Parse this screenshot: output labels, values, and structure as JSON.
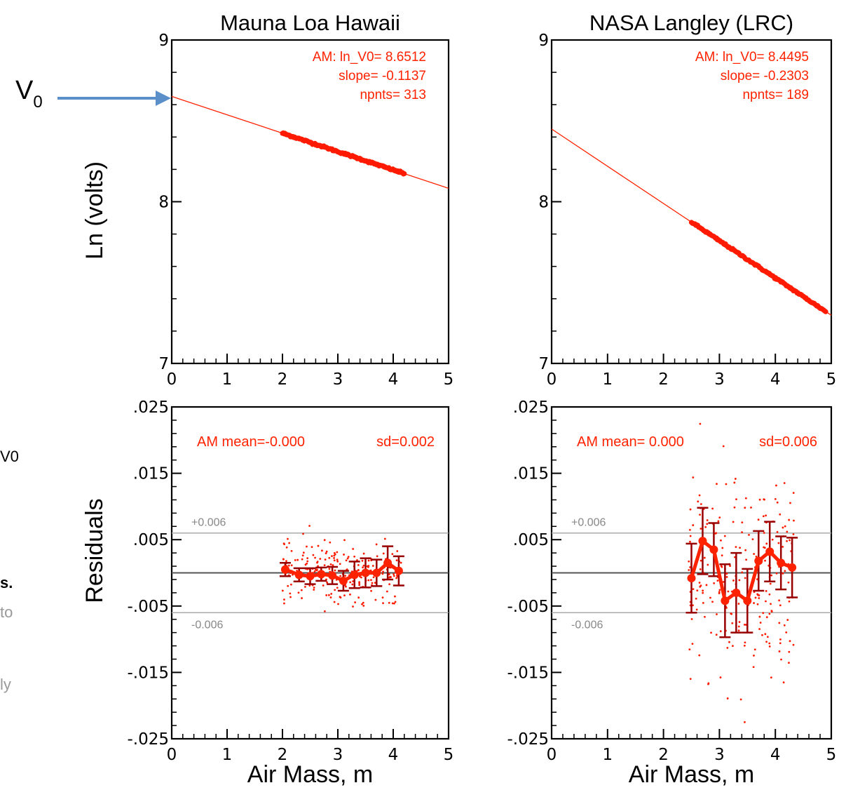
{
  "colors": {
    "fit": "#ff2200",
    "points": "#ff1a00",
    "errorbars": "#990000",
    "band": "#aaaaaa",
    "arrow": "#5b8fc9",
    "faded_text": "#999999"
  },
  "left_edge": {
    "v0_label": "V",
    "v0_subscript": "0",
    "fragments": [
      {
        "text": "V0",
        "color": "#000000",
        "bold": false
      },
      {
        "text": "s.",
        "color": "#000000",
        "bold": true
      },
      {
        "text": "to",
        "color": "#999999",
        "bold": false
      },
      {
        "text": "ly",
        "color": "#999999",
        "bold": false
      }
    ]
  },
  "chart_data": [
    {
      "type": "line",
      "title": "Mauna Loa Hawaii",
      "xlabel": "",
      "ylabel": "Ln (volts)",
      "xlim": [
        0,
        5
      ],
      "ylim": [
        7,
        9
      ],
      "x_ticks": [
        "0",
        "1",
        "2",
        "3",
        "4",
        "5"
      ],
      "y_ticks": [
        "9",
        "8",
        "7"
      ],
      "fit": {
        "intercept": 8.6512,
        "slope": -0.1137
      },
      "data_range": [
        2.0,
        4.2
      ],
      "annotation": [
        "AM: ln_V0=  8.6512",
        "slope= -0.1137",
        "npnts= 313"
      ]
    },
    {
      "type": "line",
      "title": "NASA Langley (LRC)",
      "xlabel": "",
      "ylabel": "",
      "xlim": [
        0,
        5
      ],
      "ylim": [
        7,
        9
      ],
      "x_ticks": [
        "0",
        "1",
        "2",
        "3",
        "4",
        "5"
      ],
      "y_ticks": [
        "9",
        "8",
        "7"
      ],
      "fit": {
        "intercept": 8.4495,
        "slope": -0.2303
      },
      "data_range": [
        2.5,
        4.9
      ],
      "annotation": [
        "AM: ln_V0=  8.4495",
        "slope= -0.2303",
        "npnts= 189"
      ]
    },
    {
      "type": "scatter",
      "title": "",
      "xlabel": "Air Mass, m",
      "ylabel": "Residuals",
      "xlim": [
        0,
        5
      ],
      "ylim": [
        -0.025,
        0.025
      ],
      "x_ticks": [
        "0",
        "1",
        "2",
        "3",
        "4",
        "5"
      ],
      "y_ticks": [
        ".025",
        ".015",
        ".005",
        "-.005",
        "-.015",
        "-.025"
      ],
      "band": [
        0.006,
        -0.006
      ],
      "band_labels": [
        "+0.006",
        "-0.006"
      ],
      "annotation": [
        "AM mean=-0.000",
        "sd=0.002"
      ],
      "scatter_spread": 0.0022,
      "bins": [
        {
          "x": 2.05,
          "y": 0.0005,
          "err": 0.001
        },
        {
          "x": 2.3,
          "y": -0.0003,
          "err": 0.001
        },
        {
          "x": 2.5,
          "y": -0.0005,
          "err": 0.0012
        },
        {
          "x": 2.7,
          "y": -0.0002,
          "err": 0.001
        },
        {
          "x": 2.9,
          "y": -0.0004,
          "err": 0.0013
        },
        {
          "x": 3.1,
          "y": -0.0012,
          "err": 0.0015
        },
        {
          "x": 3.3,
          "y": -0.0003,
          "err": 0.002
        },
        {
          "x": 3.5,
          "y": 0.0,
          "err": 0.0022
        },
        {
          "x": 3.7,
          "y": 0.0,
          "err": 0.002
        },
        {
          "x": 3.9,
          "y": 0.0015,
          "err": 0.0025
        },
        {
          "x": 4.1,
          "y": 0.0003,
          "err": 0.0022
        }
      ]
    },
    {
      "type": "scatter",
      "title": "",
      "xlabel": "Air Mass, m",
      "ylabel": "",
      "xlim": [
        0,
        5
      ],
      "ylim": [
        -0.025,
        0.025
      ],
      "x_ticks": [
        "0",
        "1",
        "2",
        "3",
        "4",
        "5"
      ],
      "y_ticks": [
        ".025",
        ".015",
        ".005",
        "-.005",
        "-.015",
        "-.025"
      ],
      "band": [
        0.006,
        -0.006
      ],
      "band_labels": [
        "+0.006",
        "-0.006"
      ],
      "annotation": [
        "AM mean= 0.000",
        "sd=0.006"
      ],
      "scatter_spread": 0.0075,
      "bins": [
        {
          "x": 2.5,
          "y": -0.0008,
          "err": 0.0052
        },
        {
          "x": 2.7,
          "y": 0.0048,
          "err": 0.005
        },
        {
          "x": 2.9,
          "y": 0.0035,
          "err": 0.004
        },
        {
          "x": 3.1,
          "y": -0.0042,
          "err": 0.0055
        },
        {
          "x": 3.3,
          "y": -0.003,
          "err": 0.006
        },
        {
          "x": 3.5,
          "y": -0.0042,
          "err": 0.0048
        },
        {
          "x": 3.7,
          "y": 0.0018,
          "err": 0.0045
        },
        {
          "x": 3.9,
          "y": 0.0032,
          "err": 0.0045
        },
        {
          "x": 4.1,
          "y": 0.0015,
          "err": 0.004
        },
        {
          "x": 4.3,
          "y": 0.0008,
          "err": 0.0045
        }
      ]
    }
  ]
}
